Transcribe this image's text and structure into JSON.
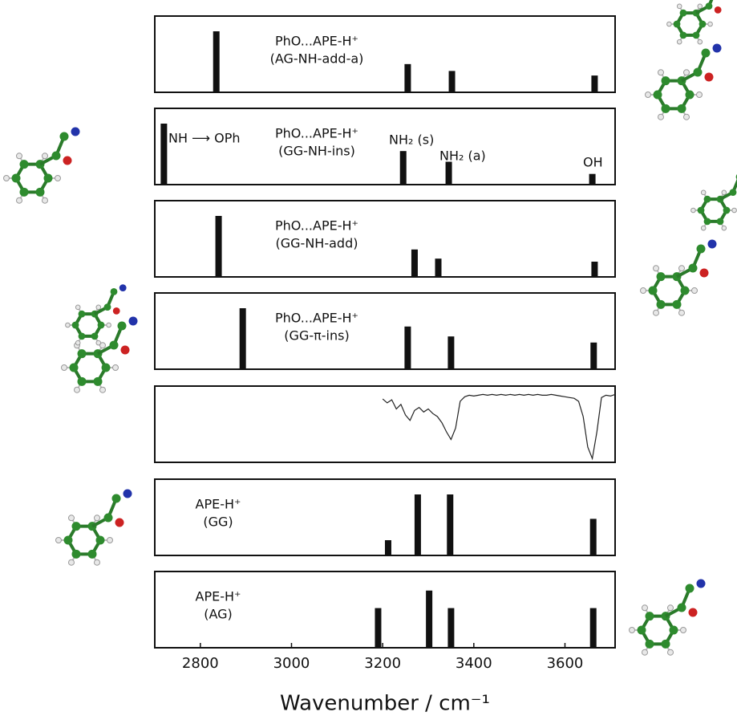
{
  "chart_data": [
    {
      "type": "bar",
      "title": "PhO...APE-H⁺",
      "subtitle": "(AG-NH-add-a)",
      "xlim": [
        2700,
        3710
      ],
      "ylim": [
        0,
        1
      ],
      "color": "#111111",
      "x": [
        2835,
        3255,
        3352,
        3665
      ],
      "values": [
        0.8,
        0.37,
        0.28,
        0.22
      ]
    },
    {
      "type": "bar",
      "title": "PhO...APE-H⁺",
      "subtitle": "(GG-NH-ins)",
      "xlim": [
        2700,
        3710
      ],
      "ylim": [
        0,
        1
      ],
      "color": "#111111",
      "x": [
        2720,
        3245,
        3345,
        3660
      ],
      "values": [
        0.8,
        0.44,
        0.3,
        0.14
      ],
      "annotations": [
        "NH ⟶ OPh",
        "NH₂ (s)",
        "NH₂ (a)",
        "OH"
      ]
    },
    {
      "type": "bar",
      "title": "PhO...APE-H⁺",
      "subtitle": "(GG-NH-add)",
      "xlim": [
        2700,
        3710
      ],
      "ylim": [
        0,
        1
      ],
      "color": "#111111",
      "x": [
        2840,
        3270,
        3322,
        3665
      ],
      "values": [
        0.8,
        0.36,
        0.24,
        0.2
      ]
    },
    {
      "type": "bar",
      "title": "PhO...APE-H⁺",
      "subtitle": "(GG-π-ins)",
      "xlim": [
        2700,
        3710
      ],
      "ylim": [
        0,
        1
      ],
      "color": "#111111",
      "x": [
        2893,
        3255,
        3350,
        3663
      ],
      "values": [
        0.8,
        0.56,
        0.43,
        0.35
      ]
    },
    {
      "type": "line",
      "xlim": [
        2700,
        3710
      ],
      "ylim": [
        0,
        1
      ],
      "color": "#222222",
      "x": [
        3200,
        3210,
        3220,
        3230,
        3240,
        3250,
        3260,
        3270,
        3280,
        3290,
        3300,
        3310,
        3320,
        3330,
        3340,
        3350,
        3360,
        3370,
        3380,
        3390,
        3400,
        3410,
        3420,
        3430,
        3440,
        3450,
        3460,
        3470,
        3480,
        3490,
        3500,
        3510,
        3520,
        3530,
        3540,
        3550,
        3560,
        3570,
        3580,
        3590,
        3600,
        3610,
        3620,
        3630,
        3640,
        3650,
        3660,
        3670,
        3680,
        3690,
        3700,
        3710
      ],
      "values": [
        0.83,
        0.78,
        0.82,
        0.7,
        0.76,
        0.62,
        0.55,
        0.68,
        0.72,
        0.66,
        0.7,
        0.64,
        0.6,
        0.52,
        0.4,
        0.3,
        0.45,
        0.8,
        0.86,
        0.88,
        0.87,
        0.88,
        0.89,
        0.88,
        0.89,
        0.88,
        0.89,
        0.88,
        0.89,
        0.88,
        0.89,
        0.88,
        0.89,
        0.88,
        0.89,
        0.88,
        0.88,
        0.89,
        0.88,
        0.87,
        0.86,
        0.85,
        0.84,
        0.8,
        0.6,
        0.2,
        0.05,
        0.4,
        0.85,
        0.88,
        0.87,
        0.89
      ]
    },
    {
      "type": "bar",
      "title": "APE-H⁺",
      "subtitle": "(GG)",
      "xlim": [
        2700,
        3710
      ],
      "ylim": [
        0,
        1
      ],
      "color": "#111111",
      "x": [
        3212,
        3277,
        3348,
        3662
      ],
      "values": [
        0.2,
        0.8,
        0.8,
        0.48
      ]
    },
    {
      "type": "bar",
      "title": "APE-H⁺",
      "subtitle": "(AG)",
      "xlim": [
        2700,
        3710
      ],
      "ylim": [
        0,
        1
      ],
      "color": "#111111",
      "x": [
        3190,
        3302,
        3350,
        3662
      ],
      "values": [
        0.52,
        0.75,
        0.52,
        0.52
      ],
      "xticks": [
        2800,
        3000,
        3200,
        3400,
        3600
      ],
      "xlabel": "Wavenumber / cm⁻¹"
    }
  ]
}
